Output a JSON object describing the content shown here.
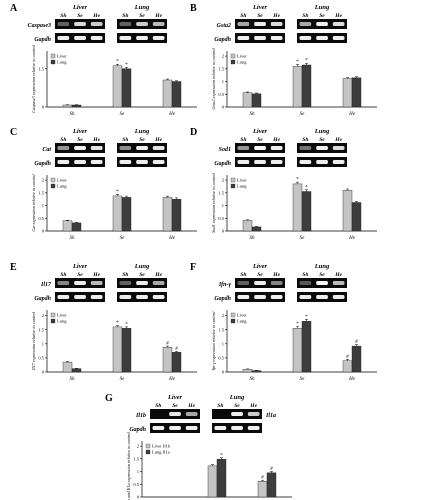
{
  "figure": {
    "tissue_labels": [
      "Liver",
      "Lung"
    ],
    "lane_labels": [
      "Sh",
      "Se",
      "He"
    ],
    "housekeeping_label": "Gapdh"
  },
  "chart_data": [
    {
      "panel": "A",
      "type": "bar",
      "gene": "Caspase3",
      "categories": [
        "Sh",
        "Se",
        "He"
      ],
      "series": [
        {
          "name": "Liver",
          "values": [
            0.08,
            1.62,
            1.06
          ],
          "errors": [
            0.01,
            0.06,
            0.04
          ]
        },
        {
          "name": "Lung",
          "values": [
            0.08,
            1.5,
            1.0
          ],
          "errors": [
            0.01,
            0.06,
            0.03
          ]
        }
      ],
      "ylabel": "Caspase3 expression relative to control",
      "yticks": [
        0,
        1.5
      ],
      "ylim": [
        0,
        2.2
      ],
      "annotations": [
        "*",
        "*",
        "",
        ""
      ],
      "legend": "top-left"
    },
    {
      "panel": "B",
      "type": "bar",
      "gene": "Gsta2",
      "categories": [
        "Sh",
        "Se",
        "He"
      ],
      "series": [
        {
          "name": "Liver",
          "values": [
            0.56,
            1.6,
            1.12
          ],
          "errors": [
            0.03,
            0.07,
            0.03
          ]
        },
        {
          "name": "Lung",
          "values": [
            0.52,
            1.65,
            1.15
          ],
          "errors": [
            0.03,
            0.07,
            0.04
          ]
        }
      ],
      "ylabel": "Gsta2 expression relative to control",
      "yticks": [
        0,
        0.5,
        1,
        1.5,
        2
      ],
      "ylim": [
        0,
        2.2
      ],
      "annotations": [
        "*",
        "*",
        "",
        ""
      ],
      "legend": "top-left"
    },
    {
      "panel": "C",
      "type": "bar",
      "gene": "Cat",
      "categories": [
        "Sh",
        "Se",
        "He"
      ],
      "series": [
        {
          "name": "Liver",
          "values": [
            0.4,
            1.38,
            1.32
          ],
          "errors": [
            0.02,
            0.06,
            0.05
          ]
        },
        {
          "name": "Lung",
          "values": [
            0.32,
            1.32,
            1.25
          ],
          "errors": [
            0.02,
            0.05,
            0.05
          ]
        }
      ],
      "ylabel": "Cat expression relative to control",
      "yticks": [
        0,
        0.5,
        1,
        1.5,
        2
      ],
      "ylim": [
        0,
        2.2
      ],
      "annotations": [
        "*",
        "",
        "",
        ""
      ],
      "legend": "top-left"
    },
    {
      "panel": "D",
      "type": "bar",
      "gene": "Sod1",
      "categories": [
        "Sh",
        "Se",
        "He"
      ],
      "series": [
        {
          "name": "Liver",
          "values": [
            0.42,
            1.85,
            1.6
          ],
          "errors": [
            0.02,
            0.07,
            0.05
          ]
        },
        {
          "name": "Lung",
          "values": [
            0.16,
            1.55,
            1.12
          ],
          "errors": [
            0.02,
            0.07,
            0.04
          ]
        }
      ],
      "ylabel": "Sod1 expression relative to control",
      "yticks": [
        0,
        0.5,
        1,
        1.5,
        2
      ],
      "ylim": [
        0,
        2.2
      ],
      "annotations": [
        "*",
        "*",
        "",
        ""
      ],
      "legend": "top-left"
    },
    {
      "panel": "E",
      "type": "bar",
      "gene": "Il17",
      "categories": [
        "Sh",
        "Se",
        "He"
      ],
      "series": [
        {
          "name": "Liver",
          "values": [
            0.35,
            1.6,
            0.88
          ],
          "errors": [
            0.02,
            0.05,
            0.04
          ]
        },
        {
          "name": "Lung",
          "values": [
            0.12,
            1.55,
            0.7
          ],
          "errors": [
            0.01,
            0.05,
            0.03
          ]
        }
      ],
      "ylabel": "Il17 expression relative to control",
      "yticks": [
        0,
        0.5,
        1,
        1.5,
        2
      ],
      "ylim": [
        0,
        2.2
      ],
      "annotations": [
        "*",
        "*",
        "#",
        "#"
      ],
      "legend": "top-left"
    },
    {
      "panel": "F",
      "type": "bar",
      "gene": "Ifn-γ",
      "categories": [
        "Sh",
        "Se",
        "He"
      ],
      "series": [
        {
          "name": "Liver",
          "values": [
            0.1,
            1.55,
            0.4
          ],
          "errors": [
            0.01,
            0.06,
            0.05
          ]
        },
        {
          "name": "Lung",
          "values": [
            0.05,
            1.8,
            0.92
          ],
          "errors": [
            0.01,
            0.07,
            0.05
          ]
        }
      ],
      "ylabel": "Ifn-γ expression relative to control",
      "yticks": [
        0,
        0.5,
        1,
        1.5,
        2
      ],
      "ylim": [
        0,
        2.2
      ],
      "annotations": [
        "*",
        "*",
        "#",
        "#"
      ],
      "legend": "top-left"
    },
    {
      "panel": "G",
      "type": "bar",
      "gene": "Il1b",
      "categories": [
        "Sh",
        "Se",
        "He"
      ],
      "series": [
        {
          "name": "Liver Il1b",
          "values": [
            0.0,
            1.22,
            0.62
          ],
          "errors": [
            0.0,
            0.05,
            0.04
          ]
        },
        {
          "name": "Lung Il1a",
          "values": [
            0.0,
            1.48,
            0.95
          ],
          "errors": [
            0.0,
            0.06,
            0.05
          ]
        }
      ],
      "ylabel": "Il1b and Il1a expression relative to control",
      "yticks": [
        0,
        0.5,
        1,
        1.5,
        2
      ],
      "ylim": [
        0,
        2.2
      ],
      "annotations": [
        "",
        "*",
        "#",
        "#"
      ],
      "legend": "top-left",
      "extra_label": "Il1a"
    }
  ]
}
